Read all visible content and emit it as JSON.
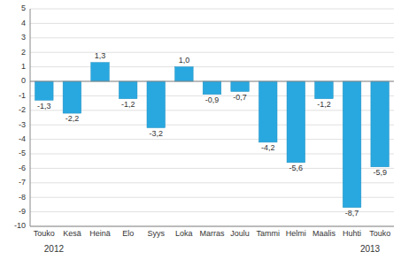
{
  "chart_data": {
    "type": "bar",
    "categories": [
      "Touko",
      "Kesä",
      "Heinä",
      "Elo",
      "Syys",
      "Loka",
      "Marras",
      "Joulu",
      "Tammi",
      "Helmi",
      "Maalis",
      "Huhti",
      "Touko"
    ],
    "values": [
      -1.3,
      -2.2,
      1.3,
      -1.2,
      -3.2,
      1.0,
      -0.9,
      -0.7,
      -4.2,
      -5.6,
      -1.2,
      -8.7,
      -5.9
    ],
    "value_labels": [
      "-1,3",
      "-2,2",
      "1,3",
      "-1,2",
      "-3,2",
      "1,0",
      "-0,9",
      "-0,7",
      "-4,2",
      "-5,6",
      "-1,2",
      "-8,7",
      "-5,9"
    ],
    "data_labels": true,
    "color": "#29a8e0",
    "ylim": [
      -10,
      5
    ],
    "yticks": [
      -10,
      -9,
      -8,
      -7,
      -6,
      -5,
      -4,
      -3,
      -2,
      -1,
      0,
      1,
      2,
      3,
      4,
      5
    ],
    "grid": true,
    "annotations": [
      "2012",
      "2013"
    ]
  }
}
